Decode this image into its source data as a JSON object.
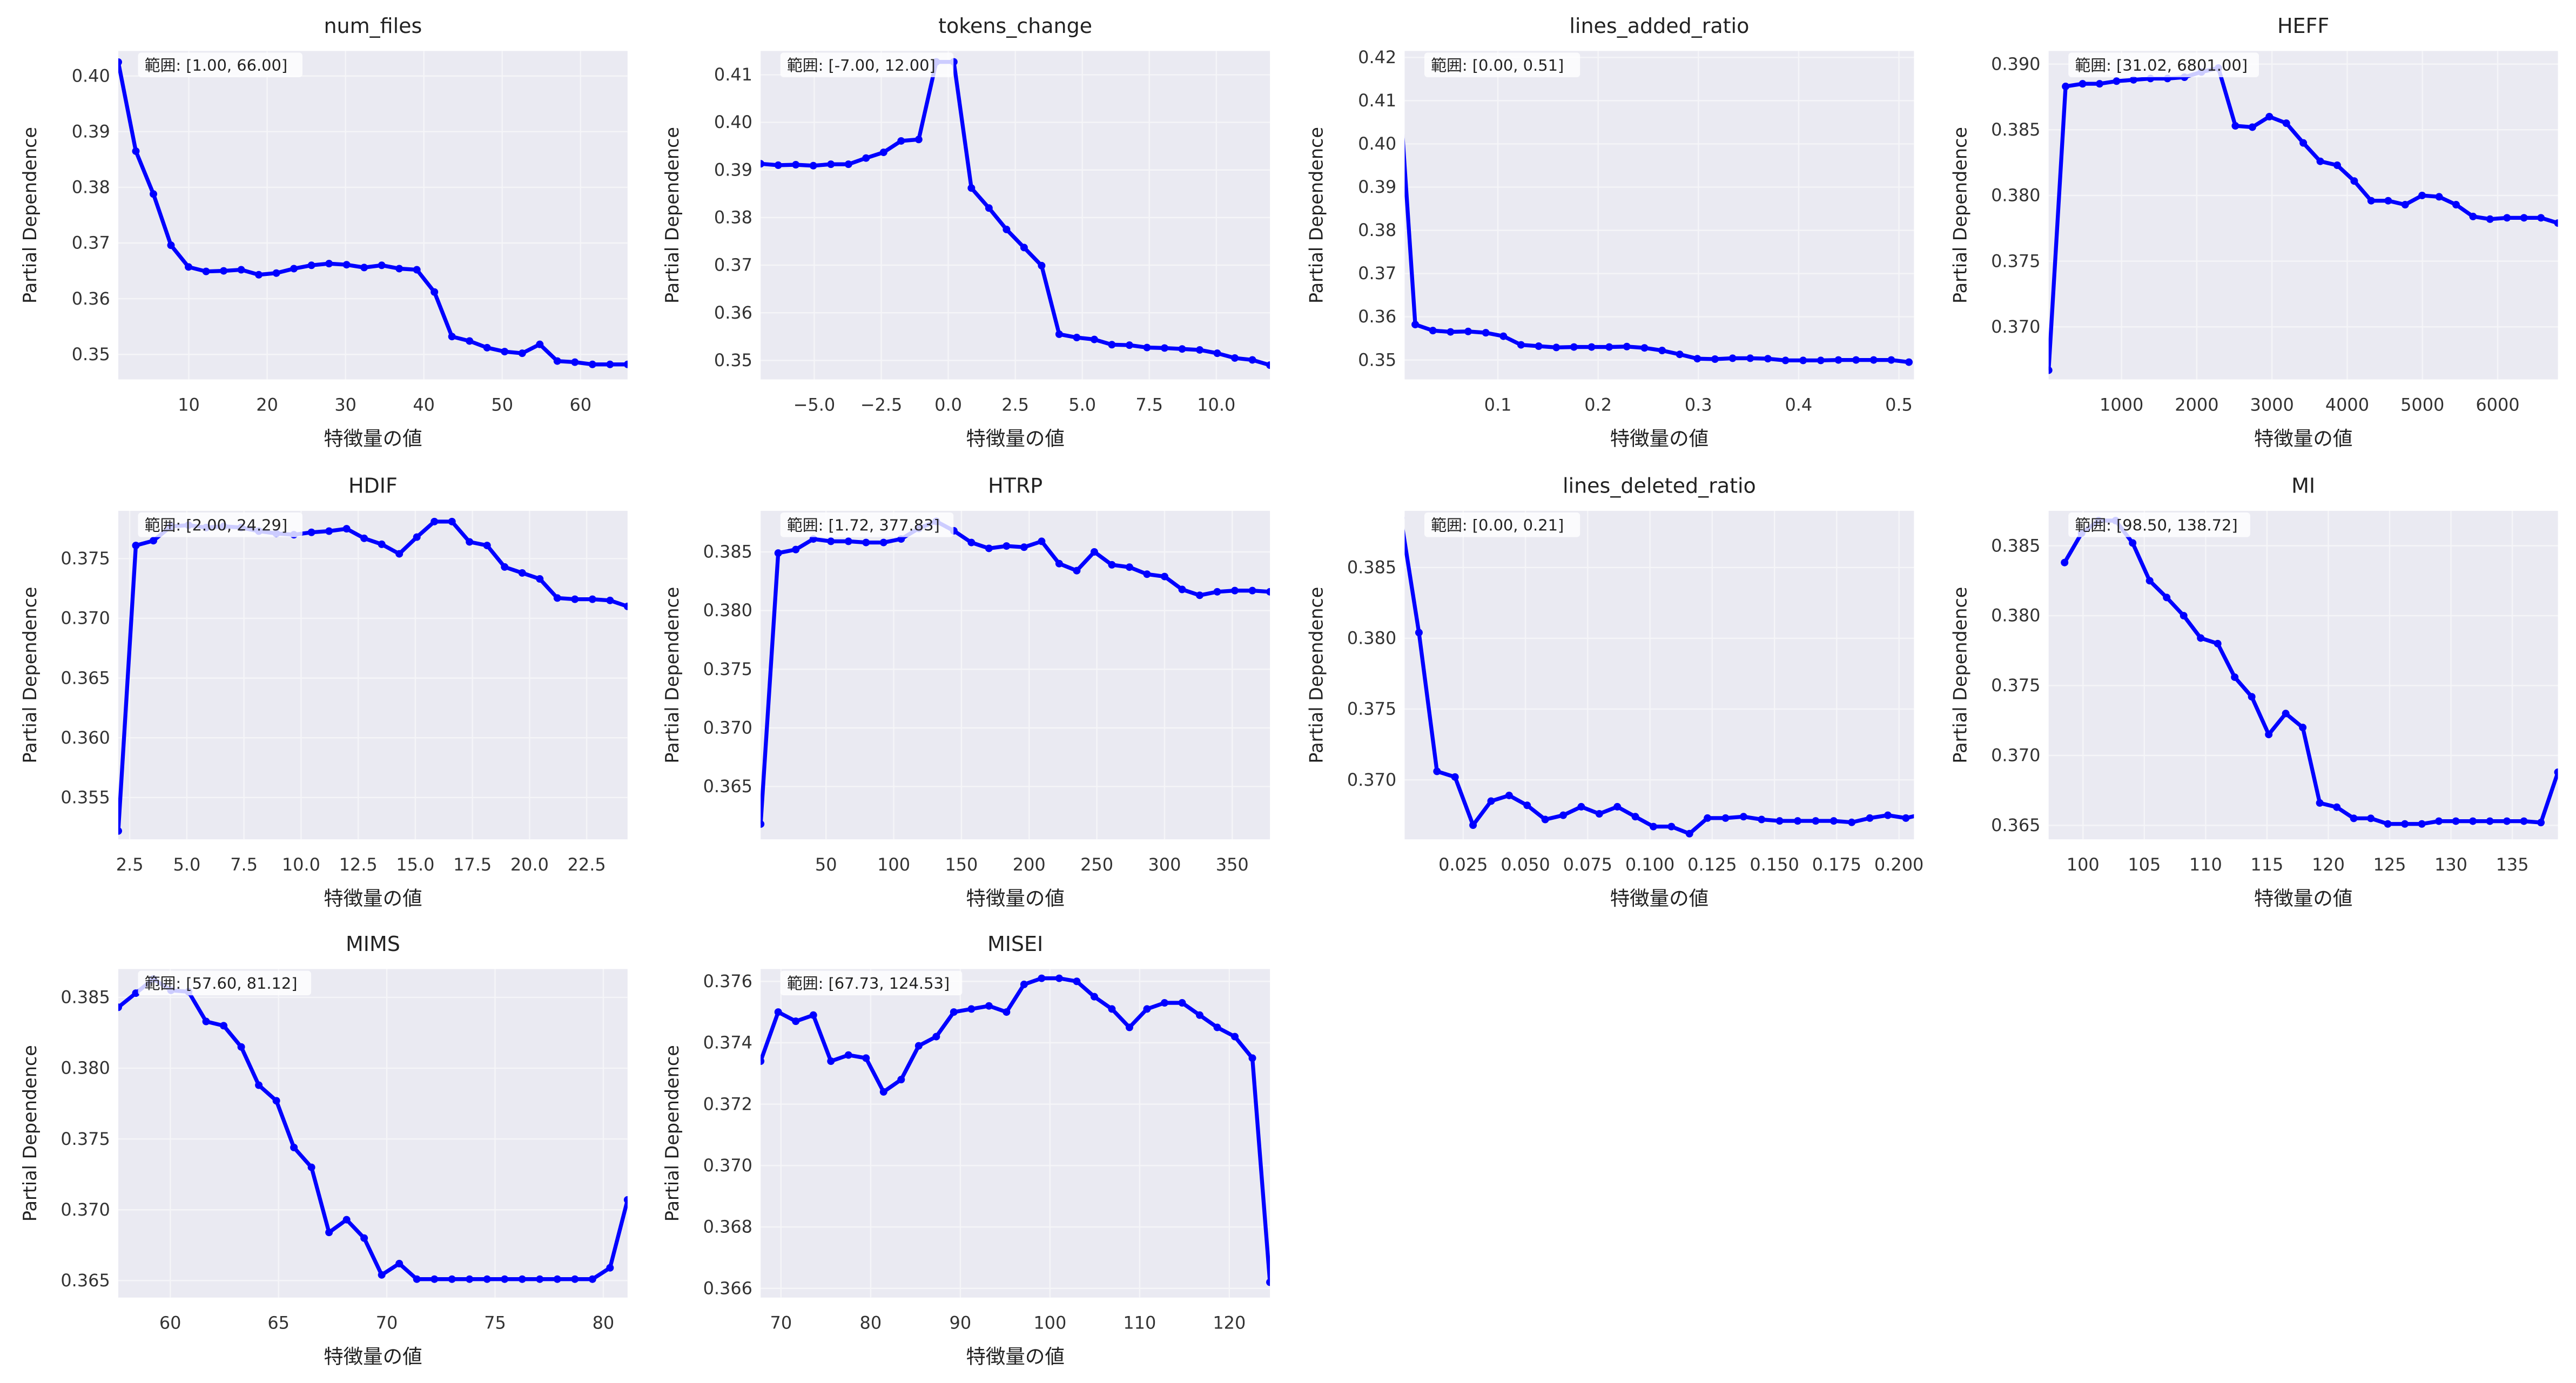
{
  "figure": {
    "xlabel": "特徴量の値",
    "ylabel": "Partial Dependence",
    "range_prefix": "範囲: ",
    "line_color": "#0000ff",
    "axes_bg": "#eaeaf2",
    "grid_color": "#f5f5f8"
  },
  "chart_data": [
    {
      "type": "line",
      "title": "num_files",
      "range_label": "[1.00, 66.00]",
      "x_range": [
        1,
        66
      ],
      "xlim": [
        1,
        66
      ],
      "ylim": [
        0.3455,
        0.4045
      ],
      "xticks": [
        10,
        20,
        30,
        40,
        50,
        60
      ],
      "xtick_labels": [
        "10",
        "20",
        "30",
        "40",
        "50",
        "60"
      ],
      "yticks": [
        0.35,
        0.36,
        0.37,
        0.38,
        0.39,
        0.4
      ],
      "ytick_labels": [
        "0.35",
        "0.36",
        "0.37",
        "0.38",
        "0.39",
        "0.40"
      ],
      "y": [
        0.4025,
        0.3865,
        0.3788,
        0.3696,
        0.3657,
        0.3649,
        0.365,
        0.3652,
        0.3643,
        0.3646,
        0.3654,
        0.366,
        0.3663,
        0.3661,
        0.3656,
        0.366,
        0.3654,
        0.3652,
        0.3612,
        0.3532,
        0.3524,
        0.3512,
        0.3505,
        0.3502,
        0.3518,
        0.3488,
        0.3486,
        0.3482,
        0.3482,
        0.3482
      ]
    },
    {
      "type": "line",
      "title": "tokens_change",
      "range_label": "[-7.00, 12.00]",
      "x_range": [
        -7,
        12
      ],
      "xlim": [
        -7,
        12
      ],
      "ylim": [
        0.346,
        0.415
      ],
      "xticks": [
        -5,
        -2.5,
        0,
        2.5,
        5,
        7.5,
        10
      ],
      "xtick_labels": [
        "−5.0",
        "−2.5",
        "0.0",
        "2.5",
        "5.0",
        "7.5",
        "10.0"
      ],
      "yticks": [
        0.35,
        0.36,
        0.37,
        0.38,
        0.39,
        0.4,
        0.41
      ],
      "ytick_labels": [
        "0.35",
        "0.36",
        "0.37",
        "0.38",
        "0.39",
        "0.40",
        "0.41"
      ],
      "y": [
        0.3913,
        0.391,
        0.3911,
        0.3909,
        0.3912,
        0.3912,
        0.3925,
        0.3937,
        0.3961,
        0.3964,
        0.4127,
        0.4127,
        0.3862,
        0.382,
        0.3775,
        0.3737,
        0.3699,
        0.3555,
        0.3548,
        0.3544,
        0.3533,
        0.3532,
        0.3527,
        0.3526,
        0.3524,
        0.3522,
        0.3515,
        0.3505,
        0.3501,
        0.349
      ]
    },
    {
      "type": "line",
      "title": "lines_added_ratio",
      "range_label": "[0.00, 0.51]",
      "x_range": [
        0,
        0.51
      ],
      "xlim": [
        0.007,
        0.515
      ],
      "ylim": [
        0.3455,
        0.4215
      ],
      "xticks": [
        0.1,
        0.2,
        0.3,
        0.4,
        0.5
      ],
      "xtick_labels": [
        "0.1",
        "0.2",
        "0.3",
        "0.4",
        "0.5"
      ],
      "yticks": [
        0.35,
        0.36,
        0.37,
        0.38,
        0.39,
        0.4,
        0.41,
        0.42
      ],
      "ytick_labels": [
        "0.35",
        "0.36",
        "0.37",
        "0.38",
        "0.39",
        "0.40",
        "0.41",
        "0.42"
      ],
      "y": [
        0.419,
        0.3582,
        0.3568,
        0.3565,
        0.3566,
        0.3563,
        0.3555,
        0.3535,
        0.3532,
        0.3529,
        0.353,
        0.353,
        0.353,
        0.3531,
        0.3528,
        0.3522,
        0.3513,
        0.3503,
        0.3502,
        0.3504,
        0.3504,
        0.3503,
        0.3499,
        0.3499,
        0.3499,
        0.35,
        0.35,
        0.35,
        0.35,
        0.3495
      ]
    },
    {
      "type": "line",
      "title": "HEFF",
      "range_label": "[31.02, 6801.00]",
      "x_range": [
        31.02,
        6801
      ],
      "xlim": [
        31.02,
        6801
      ],
      "ylim": [
        0.366,
        0.391
      ],
      "xticks": [
        1000,
        2000,
        3000,
        4000,
        5000,
        6000
      ],
      "xtick_labels": [
        "1000",
        "2000",
        "3000",
        "4000",
        "5000",
        "6000"
      ],
      "yticks": [
        0.37,
        0.375,
        0.38,
        0.385,
        0.39
      ],
      "ytick_labels": [
        "0.370",
        "0.375",
        "0.380",
        "0.385",
        "0.390"
      ],
      "y": [
        0.3667,
        0.3883,
        0.3885,
        0.3885,
        0.3887,
        0.3888,
        0.3889,
        0.3889,
        0.389,
        0.3894,
        0.3897,
        0.3853,
        0.3852,
        0.386,
        0.3855,
        0.384,
        0.3826,
        0.3823,
        0.3811,
        0.3796,
        0.3796,
        0.3793,
        0.38,
        0.3799,
        0.3793,
        0.3784,
        0.3782,
        0.3783,
        0.3783,
        0.3783,
        0.3779
      ]
    },
    {
      "type": "line",
      "title": "HDIF",
      "range_label": "[2.00, 24.29]",
      "x_range": [
        2,
        24.29
      ],
      "xlim": [
        2,
        24.29
      ],
      "ylim": [
        0.3515,
        0.379
      ],
      "xticks": [
        2.5,
        5,
        7.5,
        10,
        12.5,
        15,
        17.5,
        20,
        22.5
      ],
      "xtick_labels": [
        "2.5",
        "5.0",
        "7.5",
        "10.0",
        "12.5",
        "15.0",
        "17.5",
        "20.0",
        "22.5"
      ],
      "yticks": [
        0.355,
        0.36,
        0.365,
        0.37,
        0.375
      ],
      "ytick_labels": [
        "0.355",
        "0.360",
        "0.365",
        "0.370",
        "0.375"
      ],
      "y": [
        0.3522,
        0.3761,
        0.3765,
        0.3777,
        0.3778,
        0.3776,
        0.3777,
        0.3776,
        0.3773,
        0.3771,
        0.377,
        0.3772,
        0.3773,
        0.3775,
        0.3767,
        0.3762,
        0.3754,
        0.3768,
        0.3781,
        0.3781,
        0.3764,
        0.3761,
        0.3743,
        0.3738,
        0.3733,
        0.3717,
        0.3716,
        0.3716,
        0.3715,
        0.371
      ]
    },
    {
      "type": "line",
      "title": "HTRP",
      "range_label": "[1.72, 377.83]",
      "x_range": [
        1.72,
        377.83
      ],
      "xlim": [
        1.72,
        377.83
      ],
      "ylim": [
        0.3605,
        0.3885
      ],
      "xticks": [
        50,
        100,
        150,
        200,
        250,
        300,
        350
      ],
      "xtick_labels": [
        "50",
        "100",
        "150",
        "200",
        "250",
        "300",
        "350"
      ],
      "yticks": [
        0.365,
        0.37,
        0.375,
        0.38,
        0.385
      ],
      "ytick_labels": [
        "0.365",
        "0.370",
        "0.375",
        "0.380",
        "0.385"
      ],
      "y": [
        0.3618,
        0.3849,
        0.3852,
        0.3861,
        0.3859,
        0.3859,
        0.3858,
        0.3858,
        0.3861,
        0.387,
        0.3876,
        0.3868,
        0.3858,
        0.3853,
        0.3855,
        0.3854,
        0.3859,
        0.384,
        0.3834,
        0.385,
        0.3839,
        0.3837,
        0.3831,
        0.3829,
        0.3818,
        0.3813,
        0.3816,
        0.3817,
        0.3817,
        0.3816
      ]
    },
    {
      "type": "line",
      "title": "lines_deleted_ratio",
      "range_label": "[0.00, 0.21]",
      "x_range": [
        0,
        0.21
      ],
      "xlim": [
        0.0015,
        0.206
      ],
      "ylim": [
        0.3658,
        0.389
      ],
      "xticks": [
        0.025,
        0.05,
        0.075,
        0.1,
        0.125,
        0.15,
        0.175,
        0.2
      ],
      "xtick_labels": [
        "0.025",
        "0.050",
        "0.075",
        "0.100",
        "0.125",
        "0.150",
        "0.175",
        "0.200"
      ],
      "yticks": [
        0.37,
        0.375,
        0.38,
        0.385
      ],
      "ytick_labels": [
        "0.370",
        "0.375",
        "0.380",
        "0.385"
      ],
      "y": [
        0.3885,
        0.3804,
        0.3706,
        0.3702,
        0.3668,
        0.3685,
        0.3689,
        0.3682,
        0.3672,
        0.3675,
        0.3681,
        0.3676,
        0.3681,
        0.3674,
        0.3667,
        0.3667,
        0.3662,
        0.3673,
        0.3673,
        0.3674,
        0.3672,
        0.3671,
        0.3671,
        0.3671,
        0.3671,
        0.367,
        0.3673,
        0.3675,
        0.3673,
        0.3676
      ]
    },
    {
      "type": "line",
      "title": "MI",
      "range_label": "[98.50, 138.72]",
      "x_range": [
        98.5,
        138.72
      ],
      "xlim": [
        97.2,
        138.72
      ],
      "ylim": [
        0.364,
        0.3875
      ],
      "xticks": [
        100,
        105,
        110,
        115,
        120,
        125,
        130,
        135
      ],
      "xtick_labels": [
        "100",
        "105",
        "110",
        "115",
        "120",
        "125",
        "130",
        "135"
      ],
      "yticks": [
        0.365,
        0.37,
        0.375,
        0.38,
        0.385
      ],
      "ytick_labels": [
        "0.365",
        "0.370",
        "0.375",
        "0.380",
        "0.385"
      ],
      "y": [
        0.3838,
        0.3859,
        0.3868,
        0.3868,
        0.3852,
        0.3825,
        0.3813,
        0.38,
        0.3784,
        0.378,
        0.3756,
        0.3742,
        0.3715,
        0.373,
        0.372,
        0.3666,
        0.3663,
        0.3655,
        0.3655,
        0.3651,
        0.3651,
        0.3651,
        0.3653,
        0.3653,
        0.3653,
        0.3653,
        0.3653,
        0.3653,
        0.3652,
        0.3688
      ]
    },
    {
      "type": "line",
      "title": "MIMS",
      "range_label": "[57.60, 81.12]",
      "x_range": [
        57.6,
        81.12
      ],
      "xlim": [
        57.6,
        81.12
      ],
      "ylim": [
        0.3638,
        0.387
      ],
      "xticks": [
        60,
        65,
        70,
        75,
        80
      ],
      "xtick_labels": [
        "60",
        "65",
        "70",
        "75",
        "80"
      ],
      "yticks": [
        0.365,
        0.37,
        0.375,
        0.38,
        0.385
      ],
      "ytick_labels": [
        "0.365",
        "0.370",
        "0.375",
        "0.380",
        "0.385"
      ],
      "y": [
        0.3843,
        0.3853,
        0.3863,
        0.3855,
        0.3854,
        0.3833,
        0.383,
        0.3815,
        0.3788,
        0.3777,
        0.3744,
        0.373,
        0.3684,
        0.3693,
        0.368,
        0.3654,
        0.3662,
        0.3651,
        0.3651,
        0.3651,
        0.3651,
        0.3651,
        0.3651,
        0.3651,
        0.3651,
        0.3651,
        0.3651,
        0.3651,
        0.3659,
        0.3707
      ]
    },
    {
      "type": "line",
      "title": "MISEI",
      "range_label": "[67.73, 124.53]",
      "x_range": [
        67.73,
        124.53
      ],
      "xlim": [
        67.73,
        124.53
      ],
      "ylim": [
        0.3657,
        0.3764
      ],
      "xticks": [
        70,
        80,
        90,
        100,
        110,
        120
      ],
      "xtick_labels": [
        "70",
        "80",
        "90",
        "100",
        "110",
        "120"
      ],
      "yticks": [
        0.366,
        0.368,
        0.37,
        0.372,
        0.374,
        0.376
      ],
      "ytick_labels": [
        "0.366",
        "0.368",
        "0.370",
        "0.372",
        "0.374",
        "0.376"
      ],
      "y": [
        0.3734,
        0.375,
        0.3747,
        0.3749,
        0.3734,
        0.3736,
        0.3735,
        0.3724,
        0.3728,
        0.3739,
        0.3742,
        0.375,
        0.3751,
        0.3752,
        0.375,
        0.3759,
        0.3761,
        0.3761,
        0.376,
        0.3755,
        0.3751,
        0.3745,
        0.3751,
        0.3753,
        0.3753,
        0.3749,
        0.3745,
        0.3742,
        0.3735,
        0.3662
      ]
    }
  ]
}
